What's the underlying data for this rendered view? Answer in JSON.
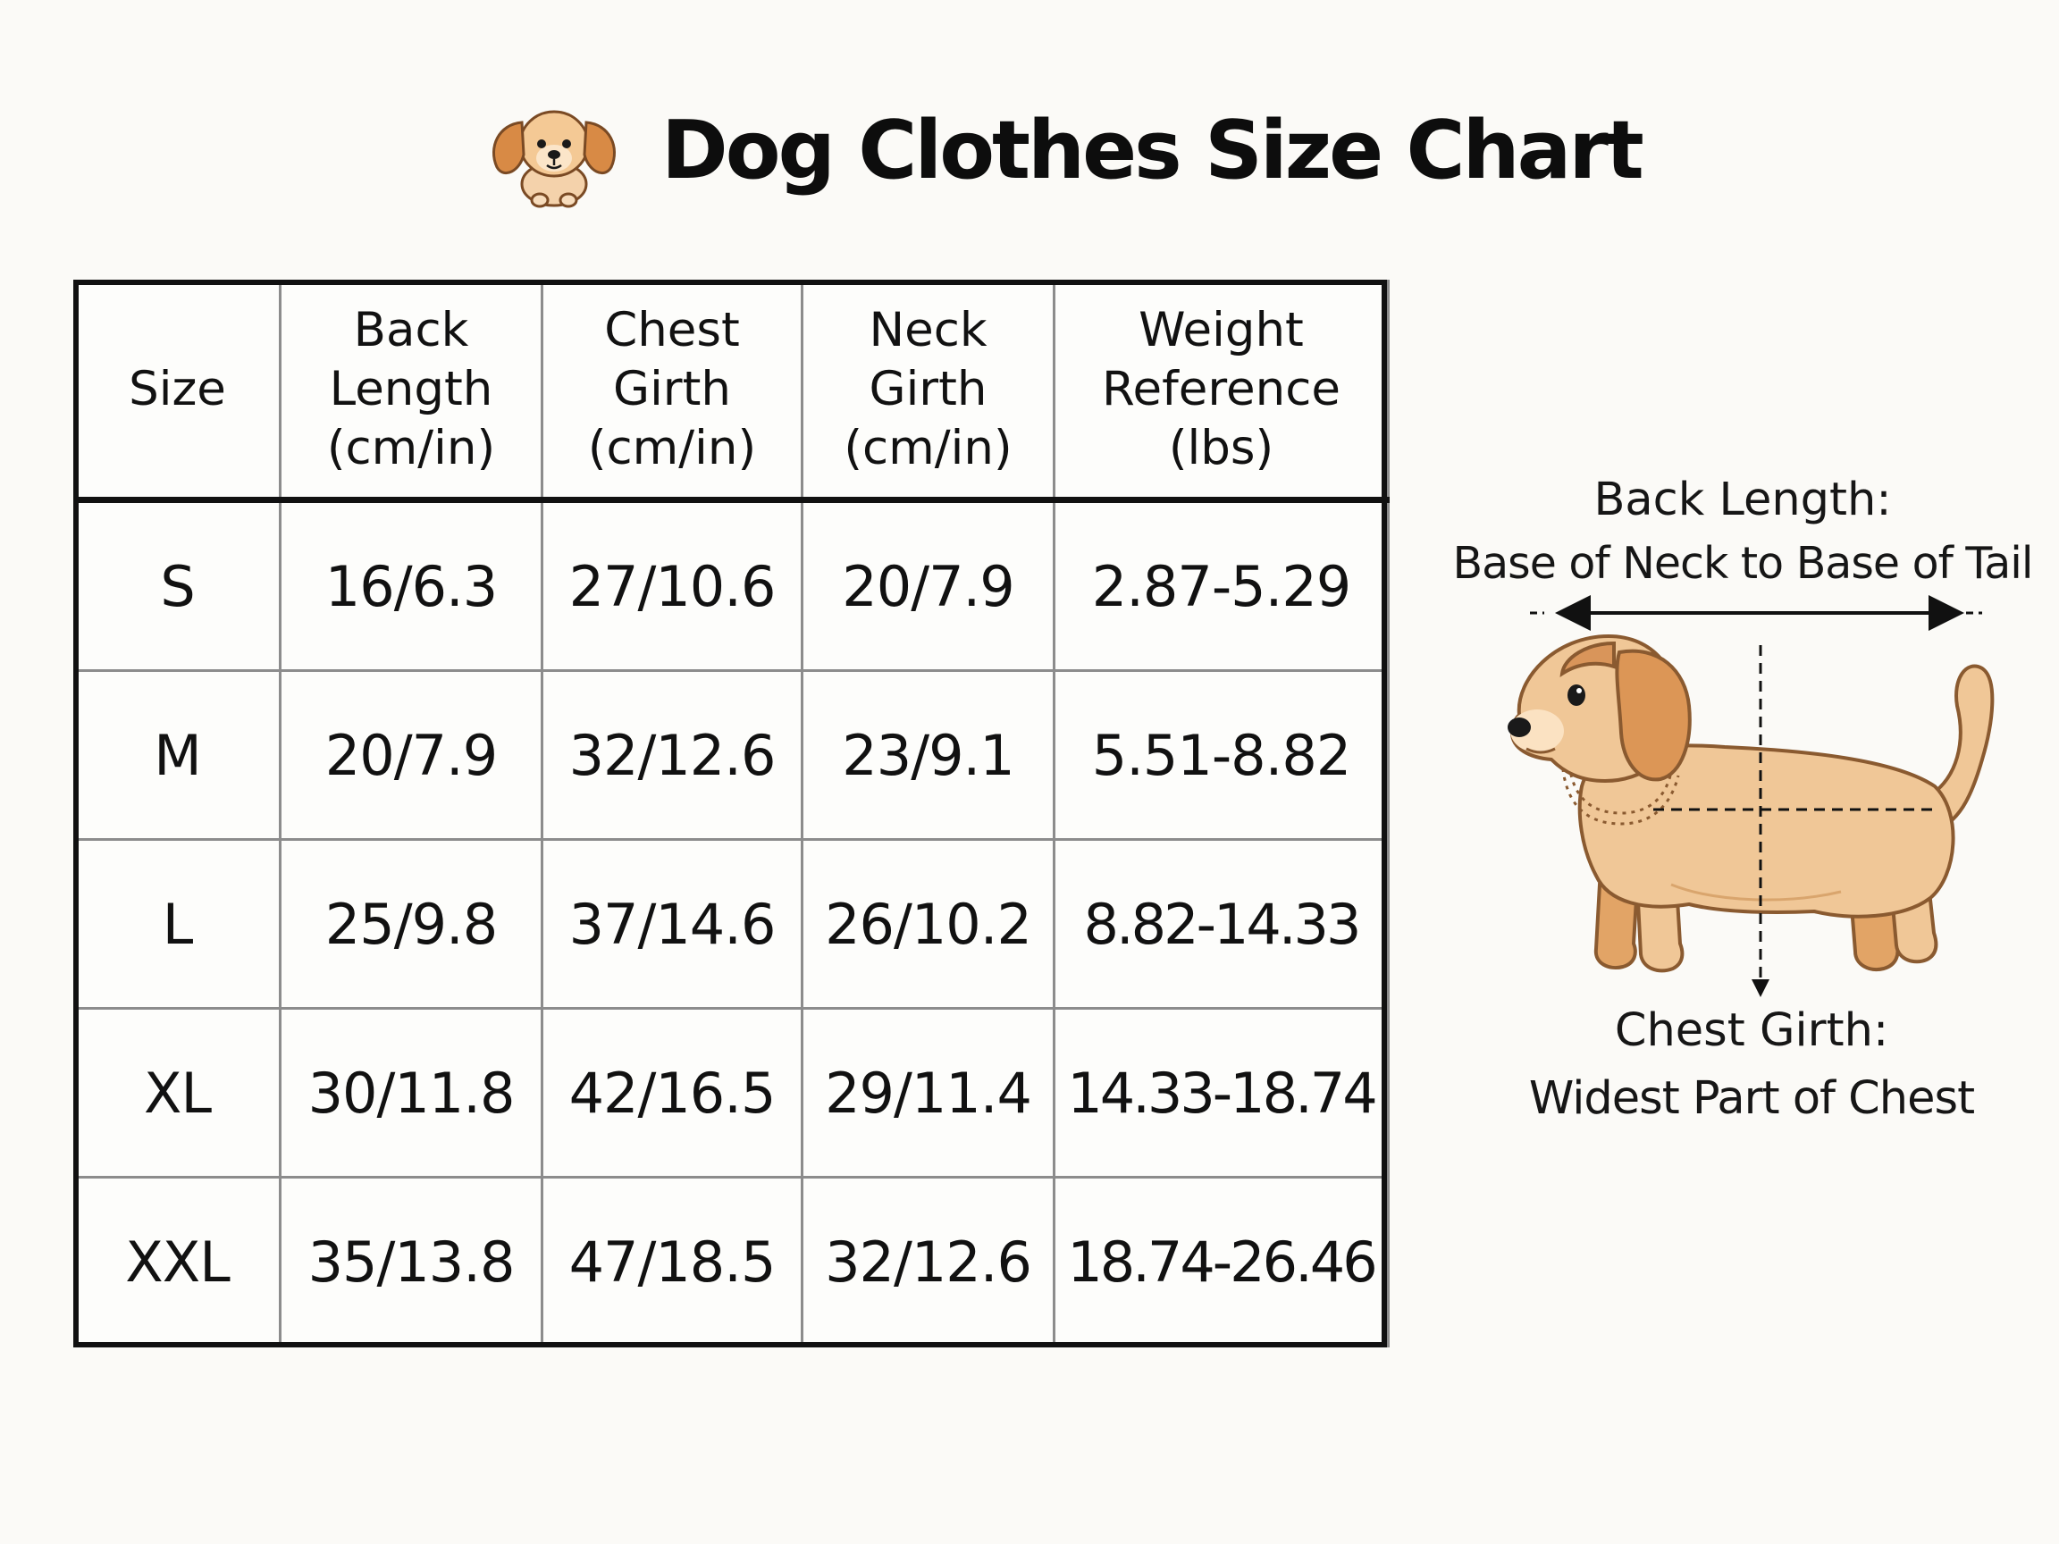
{
  "header": {
    "title": "Dog Clothes Size Chart",
    "icon": "puppy-face-icon"
  },
  "table": {
    "headers": [
      [
        "Size"
      ],
      [
        "Back",
        "Length",
        "(cm/in)"
      ],
      [
        "Chest",
        "Girth",
        "(cm/in)"
      ],
      [
        "Neck",
        "Girth",
        "(cm/in)"
      ],
      [
        "Weight",
        "Reference",
        "(lbs)"
      ]
    ],
    "rows": [
      [
        "S",
        "16/6.3",
        "27/10.6",
        "20/7.9",
        "2.87-5.29"
      ],
      [
        "M",
        "20/7.9",
        "32/12.6",
        "23/9.1",
        "5.51-8.82"
      ],
      [
        "L",
        "25/9.8",
        "37/14.6",
        "26/10.2",
        "8.82-14.33"
      ],
      [
        "XL",
        "30/11.8",
        "42/16.5",
        "29/11.4",
        "14.33-18.74"
      ],
      [
        "XXL",
        "35/13.8",
        "47/18.5",
        "32/12.6",
        "18.74-26.46"
      ]
    ]
  },
  "diagram": {
    "back_length_title": "Back Length:",
    "back_length_desc": "Base of Neck to Base of Tail",
    "chest_girth_title": "Chest Girth:",
    "chest_girth_desc": "Widest Part of Chest",
    "illustration": "dog-measurement-illustration"
  },
  "colors": {
    "background": "#fbfaf7",
    "text": "#111111",
    "grid": "#8c8c8c",
    "dog_fur": "#f0c797",
    "dog_ears": "#d9955a"
  }
}
